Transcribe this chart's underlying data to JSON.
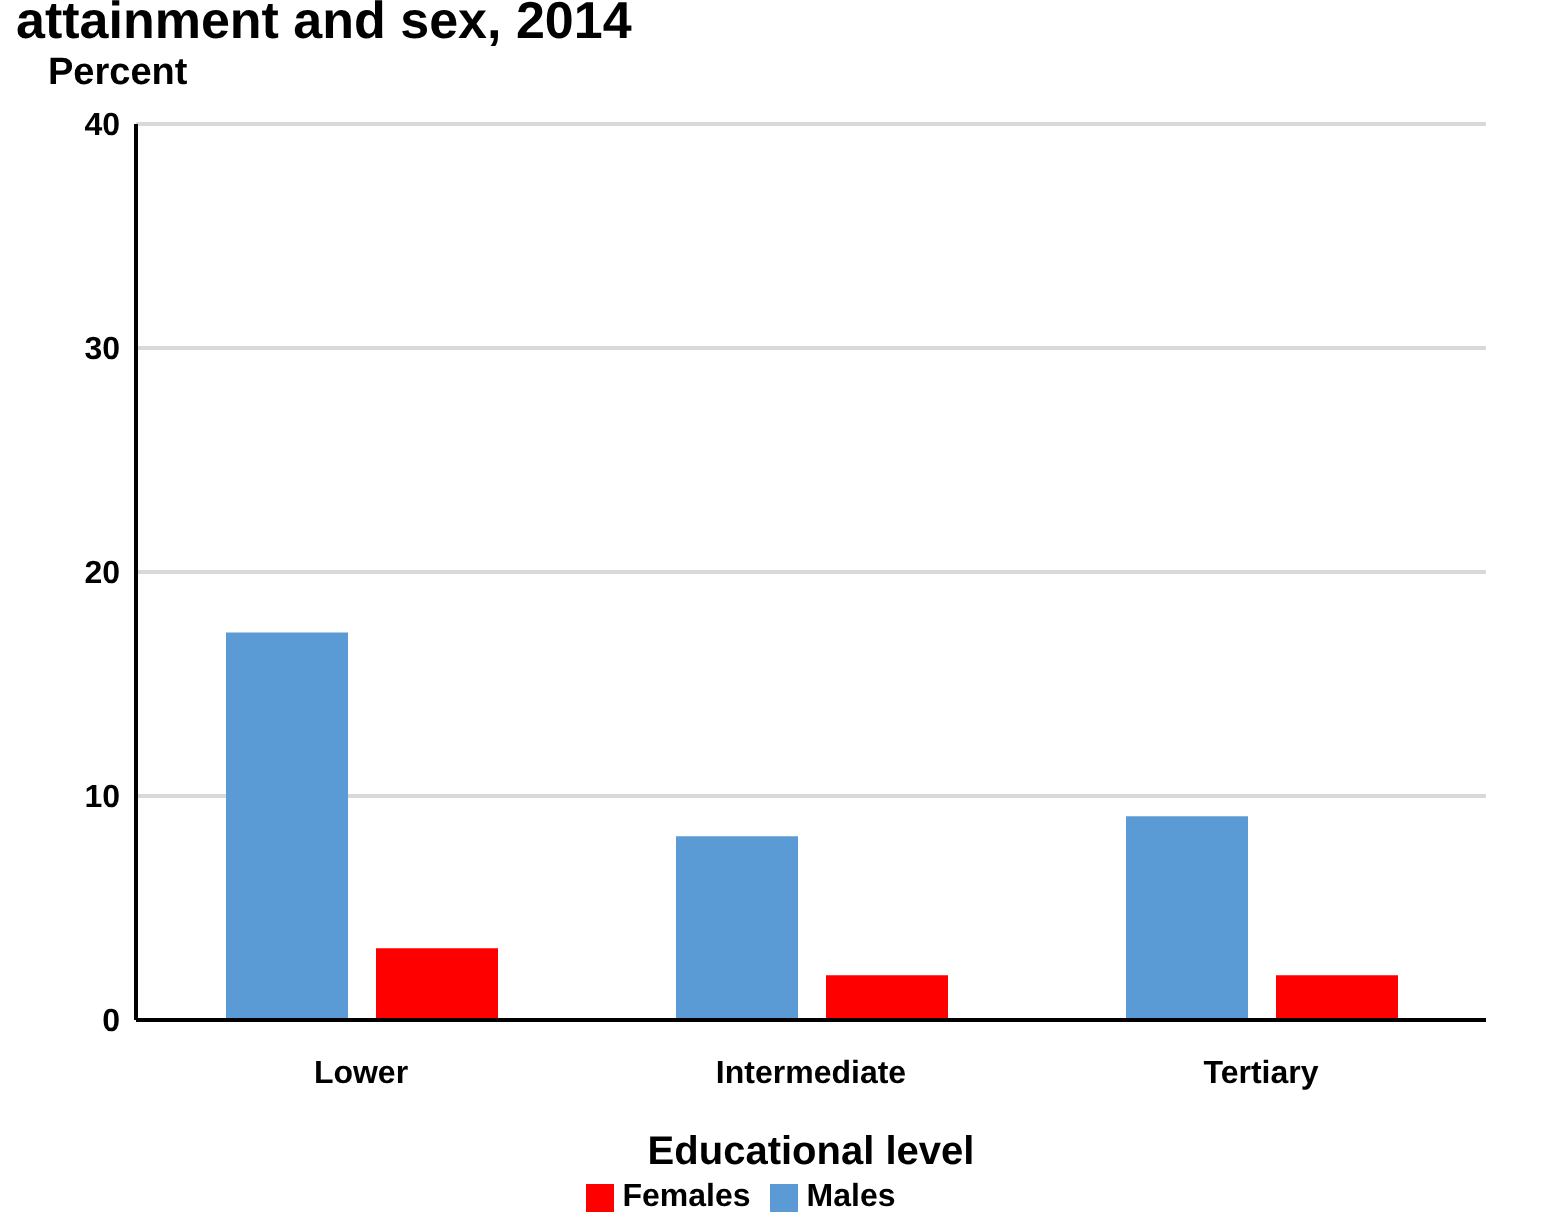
{
  "chart_data": {
    "type": "bar",
    "title": "attainment and sex, 2014",
    "ylabel": "Percent",
    "xlabel": "Educational level",
    "categories": [
      "Lower",
      "Intermediate",
      "Tertiary"
    ],
    "series": [
      {
        "name": "Males",
        "color": "#5b9bd5",
        "values": [
          17.3,
          8.2,
          9.1
        ]
      },
      {
        "name": "Females",
        "color": "#ff0000",
        "values": [
          3.2,
          2.0,
          2.0
        ]
      }
    ],
    "ylim": [
      0,
      40
    ],
    "yticks": [
      0,
      10,
      20,
      30,
      40
    ],
    "grid": "y",
    "legend": "bottom"
  }
}
